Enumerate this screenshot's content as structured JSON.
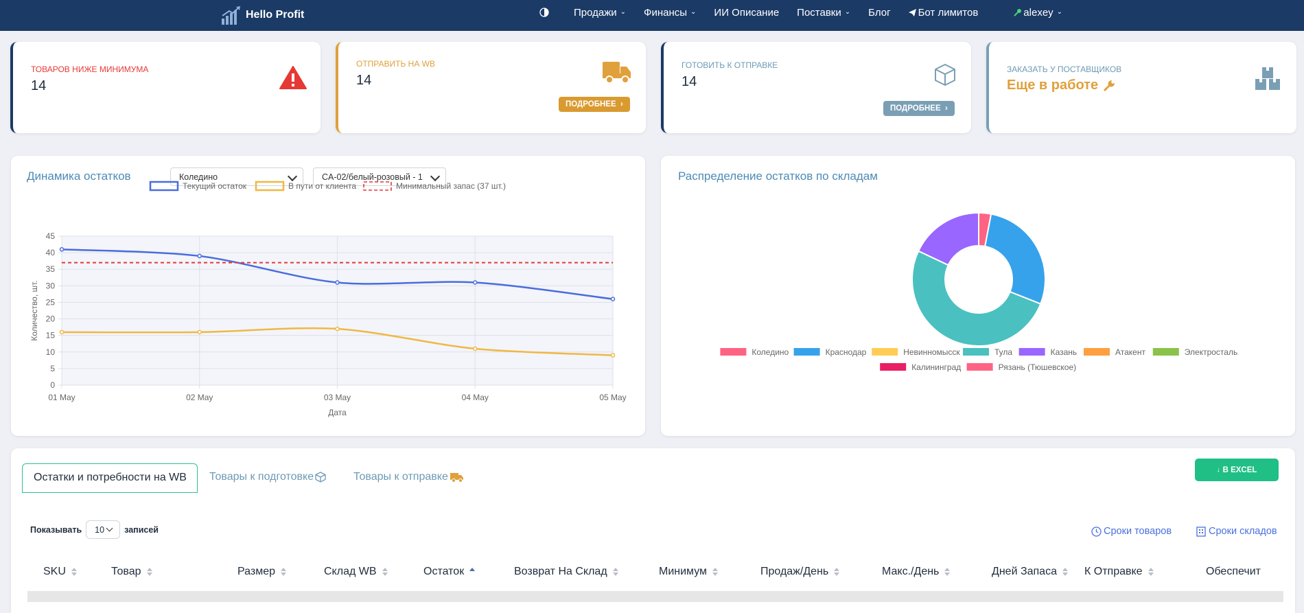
{
  "nav": {
    "brand": "Hello Profit",
    "items": [
      {
        "label": "Продажи",
        "dropdown": true
      },
      {
        "label": "Финансы",
        "dropdown": true
      },
      {
        "label": "ИИ Описание",
        "dropdown": false
      },
      {
        "label": "Поставки",
        "dropdown": true
      },
      {
        "label": "Блог",
        "dropdown": false
      },
      {
        "label": "Бот лимитов",
        "dropdown": false
      },
      {
        "label": "alexey",
        "dropdown": true
      }
    ]
  },
  "kpis": {
    "below_min": {
      "title": "ТОВАРОВ НИЖЕ МИНИМУМА",
      "value": "14",
      "accent": "#e53935"
    },
    "send_wb": {
      "title": "ОТПРАВИТЬ НА WB",
      "value": "14",
      "button": "ПОДРОБНЕЕ",
      "accent": "#e0a03c"
    },
    "prepare": {
      "title": "ГОТОВИТЬ К ОТПРАВКЕ",
      "value": "14",
      "button": "ПОДРОБНЕЕ",
      "accent": "#7a9fb5"
    },
    "order": {
      "title": "ЗАКАЗАТЬ У ПОСТАВЩИКОВ",
      "value": "Еще в работе",
      "accent": "#e0a03c"
    }
  },
  "dynamics": {
    "title": "Динамика остатков",
    "warehouse_select": "Коледино",
    "sku_select": "CA-02/белый-розовый - 1"
  },
  "distribution": {
    "title": "Распределение остатков по складам"
  },
  "chart_data": [
    {
      "type": "line",
      "x": [
        "01 May",
        "02 May",
        "03 May",
        "04 May",
        "05 May"
      ],
      "xlabel": "Дата",
      "ylabel": "Количество, шт.",
      "ylim": [
        0,
        45
      ],
      "yticks": [
        0,
        5,
        10,
        15,
        20,
        25,
        30,
        35,
        40,
        45
      ],
      "grid": true,
      "legend": "top",
      "series": [
        {
          "name": "Текущий остаток",
          "values": [
            41,
            39,
            31,
            31,
            26
          ],
          "color": "#4a6cdc"
        },
        {
          "name": "В пути от клиента",
          "values": [
            16,
            16,
            17,
            11,
            9
          ],
          "color": "#f0b842"
        },
        {
          "name": "Минимальный запас (37 шт.)",
          "values": [
            37,
            37,
            37,
            37,
            37
          ],
          "color": "#e53935",
          "dashed": true
        }
      ]
    },
    {
      "type": "pie",
      "donut": true,
      "legend": "bottom",
      "labels": [
        "Коледино",
        "Краснодар",
        "Невинномысск",
        "Тула",
        "Казань",
        "Атакент",
        "Электросталь",
        "Калининград",
        "Рязань (Тюшевское)"
      ],
      "values": [
        3,
        28,
        0,
        51,
        18,
        0,
        0,
        0,
        0
      ],
      "colors": [
        "#ff6384",
        "#36a2eb",
        "#ffcd56",
        "#4bc0c0",
        "#9966ff",
        "#ff9f40",
        "#8bc34a",
        "#e91e63",
        "#ff6384"
      ]
    }
  ],
  "tabs": [
    {
      "label": "Остатки и потребности на WB",
      "active": true
    },
    {
      "label": "Товары к подготовке",
      "active": false
    },
    {
      "label": "Товары к отправке",
      "active": false
    }
  ],
  "excel_button": "В EXCEL",
  "length_control": {
    "prefix": "Показывать",
    "value": "10",
    "suffix": "записей"
  },
  "links": {
    "product_terms": "Сроки товаров",
    "warehouse_terms": "Сроки складов"
  },
  "table": {
    "columns": [
      "SKU",
      "Товар",
      "Размер",
      "Склад WB",
      "Остаток",
      "Возврат На Склад",
      "Минимум",
      "Продаж/День",
      "Макс./День",
      "Дней Запаса",
      "К Отправке",
      "Обеспечит"
    ]
  }
}
